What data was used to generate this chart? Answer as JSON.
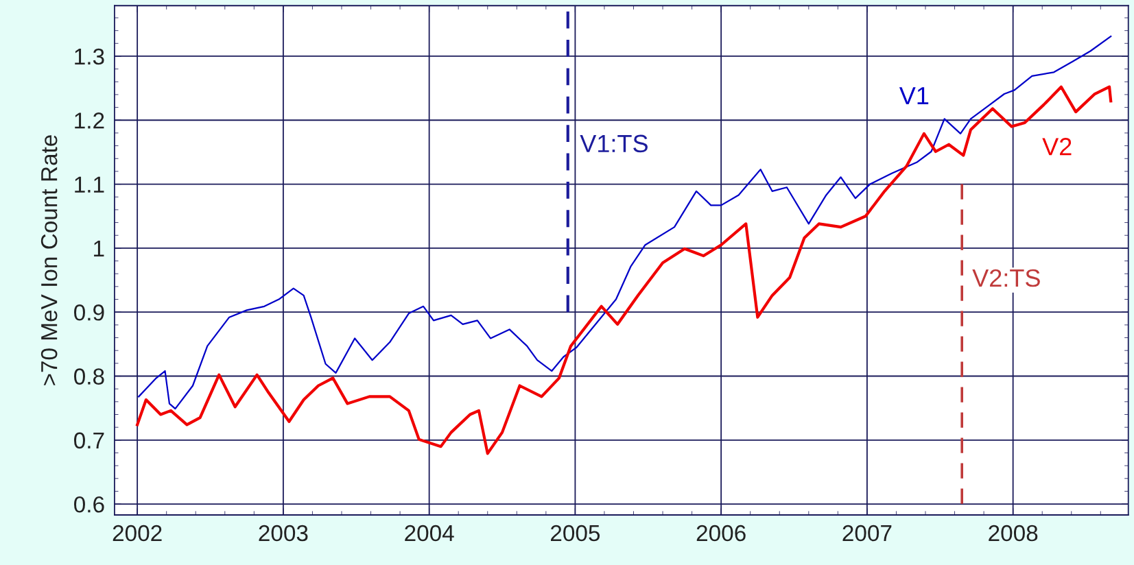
{
  "chart_data": {
    "type": "line",
    "ylabel": ">70 MeV Ion Count Rate",
    "xlim": [
      2001.844,
      2008.79
    ],
    "xticks": [
      2002,
      2003,
      2004,
      2005,
      2006,
      2007,
      2008
    ],
    "ylim": [
      0.583,
      1.379
    ],
    "yticks": [
      0.6,
      0.7,
      0.8,
      0.9,
      1,
      1.1,
      1.2,
      1.3
    ],
    "grid": true,
    "line_style": "solid",
    "marker": "none",
    "series": [
      {
        "name": "V1",
        "color": "#0000c8",
        "x": [
          2002.01,
          2002.13,
          2002.19,
          2002.22,
          2002.26,
          2002.38,
          2002.48,
          2002.63,
          2002.75,
          2002.87,
          2002.97,
          2003.07,
          2003.14,
          2003.19,
          2003.29,
          2003.36,
          2003.49,
          2003.61,
          2003.73,
          2003.86,
          2003.96,
          2004.03,
          2004.15,
          2004.23,
          2004.33,
          2004.42,
          2004.55,
          2004.67,
          2004.74,
          2004.84,
          2004.92,
          2005.01,
          2005.28,
          2005.38,
          2005.48,
          2005.68,
          2005.83,
          2005.93,
          2006.0,
          2006.12,
          2006.27,
          2006.35,
          2006.45,
          2006.6,
          2006.72,
          2006.82,
          2006.92,
          2007.02,
          2007.17,
          2007.34,
          2007.44,
          2007.53,
          2007.64,
          2007.71,
          2007.84,
          2007.94,
          2008.01,
          2008.13,
          2008.28,
          2008.41,
          2008.53,
          2008.67
        ],
        "values": [
          0.768,
          0.797,
          0.808,
          0.757,
          0.749,
          0.785,
          0.847,
          0.892,
          0.903,
          0.909,
          0.92,
          0.937,
          0.926,
          0.892,
          0.819,
          0.805,
          0.859,
          0.825,
          0.853,
          0.898,
          0.909,
          0.887,
          0.895,
          0.881,
          0.887,
          0.859,
          0.873,
          0.847,
          0.825,
          0.808,
          0.83,
          0.845,
          0.92,
          0.971,
          1.005,
          1.033,
          1.089,
          1.067,
          1.067,
          1.083,
          1.123,
          1.089,
          1.095,
          1.038,
          1.083,
          1.111,
          1.078,
          1.1,
          1.117,
          1.134,
          1.151,
          1.202,
          1.179,
          1.202,
          1.224,
          1.241,
          1.247,
          1.269,
          1.275,
          1.292,
          1.308,
          1.331
        ]
      },
      {
        "name": "V2",
        "color": "#f00000",
        "x": [
          2002.0,
          2002.06,
          2002.16,
          2002.23,
          2002.34,
          2002.43,
          2002.56,
          2002.67,
          2002.82,
          2002.9,
          2003.04,
          2003.14,
          2003.24,
          2003.34,
          2003.44,
          2003.59,
          2003.73,
          2003.86,
          2003.93,
          2004.08,
          2004.15,
          2004.28,
          2004.34,
          2004.4,
          2004.5,
          2004.62,
          2004.77,
          2004.89,
          2004.97,
          2005.18,
          2005.29,
          2005.43,
          2005.6,
          2005.75,
          2005.88,
          2006.0,
          2006.17,
          2006.25,
          2006.35,
          2006.47,
          2006.57,
          2006.67,
          2006.82,
          2006.99,
          2007.12,
          2007.27,
          2007.39,
          2007.47,
          2007.56,
          2007.66,
          2007.71,
          2007.86,
          2007.99,
          2008.08,
          2008.21,
          2008.33,
          2008.43,
          2008.56,
          2008.66,
          2008.67
        ],
        "values": [
          0.724,
          0.763,
          0.74,
          0.746,
          0.724,
          0.735,
          0.802,
          0.752,
          0.802,
          0.774,
          0.729,
          0.763,
          0.785,
          0.797,
          0.757,
          0.768,
          0.768,
          0.746,
          0.701,
          0.69,
          0.712,
          0.74,
          0.746,
          0.679,
          0.712,
          0.785,
          0.768,
          0.797,
          0.847,
          0.909,
          0.881,
          0.926,
          0.977,
          0.999,
          0.988,
          1.005,
          1.038,
          0.892,
          0.926,
          0.954,
          1.016,
          1.038,
          1.033,
          1.05,
          1.089,
          1.128,
          1.179,
          1.151,
          1.162,
          1.145,
          1.185,
          1.218,
          1.19,
          1.196,
          1.224,
          1.252,
          1.213,
          1.241,
          1.252,
          1.23
        ]
      },
      {
        "name": "V1:TS",
        "color": "#1c1c9c",
        "line_style": "dashed",
        "x": [
          2004.95,
          2004.95
        ],
        "values": [
          1.37,
          0.9
        ]
      },
      {
        "name": "V2:TS",
        "color": "#c03a3a",
        "line_style": "dashed",
        "x": [
          2007.65,
          2007.65
        ],
        "values": [
          1.1,
          0.6
        ]
      }
    ]
  }
}
